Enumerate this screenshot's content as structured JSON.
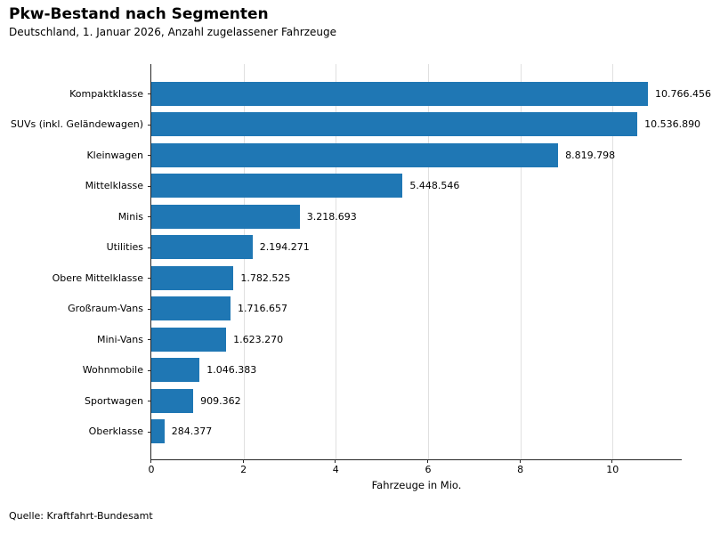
{
  "chart_data": {
    "type": "bar",
    "orientation": "horizontal",
    "title": "Pkw-Bestand nach Segmenten",
    "subtitle": "Deutschland, 1. Januar 2026, Anzahl zugelassener Fahrzeuge",
    "categories": [
      "Kompaktklasse",
      "SUVs (inkl. Geländewagen)",
      "Kleinwagen",
      "Mittelklasse",
      "Minis",
      "Utilities",
      "Obere Mittelklasse",
      "Großraum-Vans",
      "Mini-Vans",
      "Wohnmobile",
      "Sportwagen",
      "Oberklasse"
    ],
    "values": [
      10766456,
      10536890,
      8819798,
      5448546,
      3218693,
      2194271,
      1782525,
      1716657,
      1623270,
      1046383,
      909362,
      284377
    ],
    "value_labels": [
      "10.766.456",
      "10.536.890",
      "8.819.798",
      "5.448.546",
      "3.218.693",
      "2.194.271",
      "1.782.525",
      "1.716.657",
      "1.623.270",
      "1.046.383",
      "909.362",
      "284.377"
    ],
    "xlabel": "Fahrzeuge in Mio.",
    "x_ticks": [
      0,
      2,
      4,
      6,
      8,
      10
    ],
    "xlim": [
      0,
      11.5
    ],
    "unit_divisor": 1000000,
    "bar_color": "#1f77b4",
    "grid": true,
    "gridline_color": "#e0e0e0",
    "axis_color": "#262626",
    "legend": null,
    "source": "Quelle: Kraftfahrt-Bundesamt"
  }
}
